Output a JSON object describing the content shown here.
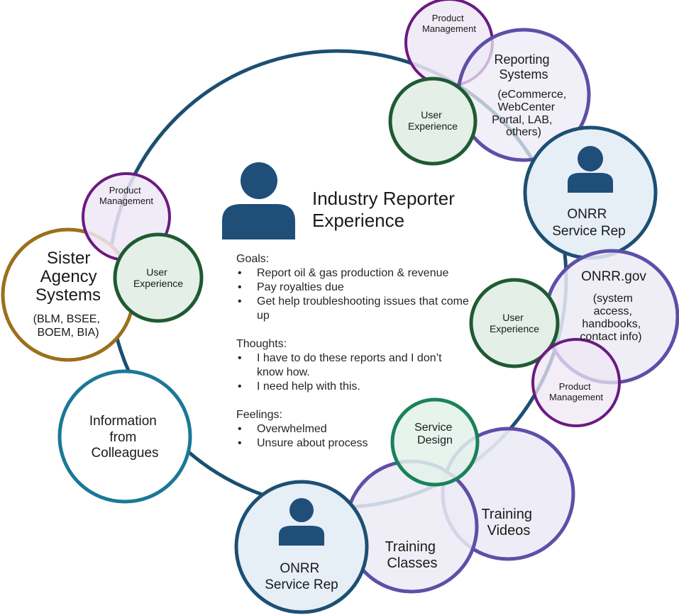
{
  "colors": {
    "main_ring": "#1b4f72",
    "person_icon": "#1f4e79",
    "purple": "#6b1a80",
    "purple_fill": "#efe7f6",
    "green": "#1f5a32",
    "green_fill": "#e4efe8",
    "violet": "#5d4fa8",
    "violet_fill": "#ecebf6",
    "navy": "#1d4f73",
    "navy_fill": "#e6eef6",
    "teal": "#1a7896",
    "teal_fill": "#ffffff",
    "gold": "#9c6f1a",
    "gold_fill": "#ffffff",
    "service_green": "#19825a",
    "service_fill": "#e3f1ea"
  },
  "center": {
    "icon": "person-icon",
    "title_line1": "Industry Reporter",
    "title_line2": "Experience",
    "goals_heading": "Goals:",
    "goals": [
      "Report oil & gas production & revenue",
      "Pay royalties due",
      "Get help troubleshooting issues that come up"
    ],
    "thoughts_heading": "Thoughts:",
    "thoughts": [
      "I have to do these reports and I don’t know how.",
      "I need help with this."
    ],
    "feelings_heading": "Feelings:",
    "feelings": [
      "Overwhelmed",
      "Unsure about process"
    ]
  },
  "nodes": {
    "pm_top": [
      "Product",
      "Management"
    ],
    "reporting_title": [
      "Reporting",
      "Systems"
    ],
    "reporting_sub": [
      "(eCommerce,",
      "WebCenter",
      "Portal, LAB,",
      "others)"
    ],
    "ux_top": [
      "User",
      "Experience"
    ],
    "onrr_rep_right": [
      "ONRR",
      "Service Rep"
    ],
    "onrr_gov_title": "ONRR.gov",
    "onrr_gov_sub": [
      "(system",
      "access,",
      "handbooks,",
      "contact info)"
    ],
    "ux_right": [
      "User",
      "Experience"
    ],
    "pm_right": [
      "Product",
      "Management"
    ],
    "pm_left": [
      "Product",
      "Management"
    ],
    "ux_left": [
      "User",
      "Experience"
    ],
    "sister_title": [
      "Sister",
      "Agency",
      "Systems"
    ],
    "sister_sub": [
      "(BLM, BSEE,",
      "BOEM, BIA)"
    ],
    "colleagues": [
      "Information",
      "from",
      "Colleagues"
    ],
    "service_design": [
      "Service",
      "Design"
    ],
    "training_videos": [
      "Training",
      "Videos"
    ],
    "training_classes": [
      "Training",
      "Classes"
    ],
    "onrr_rep_bottom": [
      "ONRR",
      "Service Rep"
    ],
    "person_icons": [
      "person-icon",
      "person-icon",
      "person-icon"
    ]
  }
}
